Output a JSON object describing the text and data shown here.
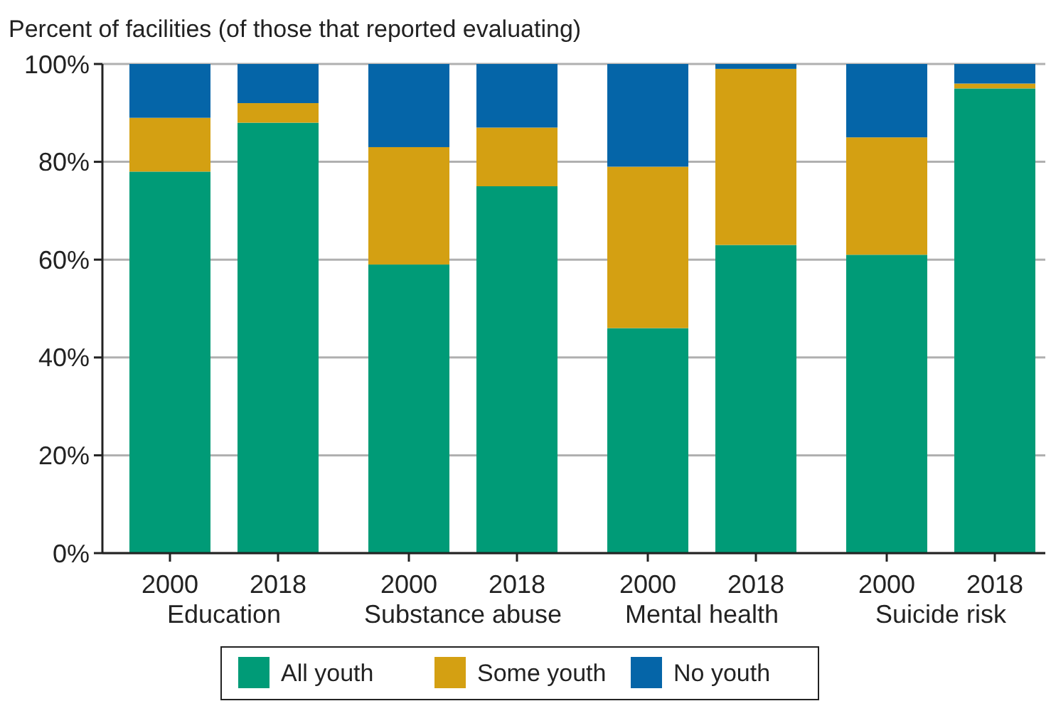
{
  "chart_data": {
    "type": "bar",
    "stacked": true,
    "ylabel": "Percent of facilities (of those that reported evaluating)",
    "categories": [
      "2000",
      "2018",
      "2000",
      "2018",
      "2000",
      "2018",
      "2000",
      "2018"
    ],
    "series": [
      {
        "name": "All youth",
        "color": "#009b77",
        "values": [
          78,
          88,
          59,
          75,
          46,
          63,
          61,
          95
        ]
      },
      {
        "name": "Some youth",
        "color": "#d4a012",
        "values": [
          11,
          4,
          24,
          12,
          33,
          36,
          24,
          1
        ]
      },
      {
        "name": "No youth",
        "color": "#0565a8",
        "values": [
          11,
          8,
          17,
          13,
          21,
          1,
          15,
          4
        ]
      }
    ],
    "annotations": [
      "Education",
      "Substance abuse",
      "Mental health",
      "Suicide risk"
    ],
    "ylim": [
      0,
      100
    ],
    "yticks": [
      {
        "value": 0,
        "label": "0%"
      },
      {
        "value": 20,
        "label": "20%"
      },
      {
        "value": 40,
        "label": "40%"
      },
      {
        "value": 60,
        "label": "60%"
      },
      {
        "value": 80,
        "label": "80%"
      },
      {
        "value": 100,
        "label": "100%"
      }
    ],
    "grid": "y",
    "legend": "bottom"
  }
}
